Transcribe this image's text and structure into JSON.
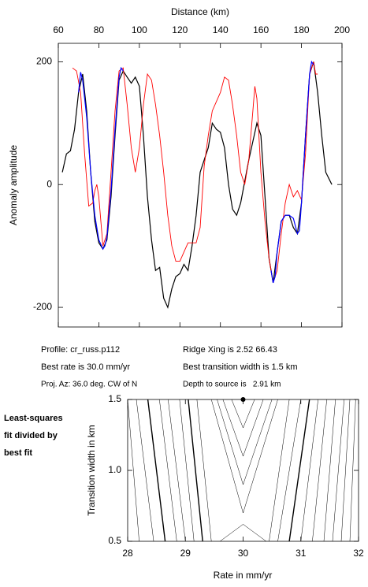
{
  "chart_data": [
    {
      "type": "line",
      "x_label": "Distance (km)",
      "y_label": "Anomaly amplitude",
      "xlim": [
        60,
        200
      ],
      "xticks": [
        60,
        80,
        100,
        120,
        140,
        160,
        180,
        200
      ],
      "ylim": [
        -232,
        230
      ],
      "yticks": [
        -200,
        0,
        200
      ],
      "series": [
        {
          "color": "#000000",
          "x": [
            62,
            64,
            66,
            68,
            70,
            72,
            74,
            76,
            78,
            80,
            82,
            84,
            86,
            88,
            90,
            92,
            94,
            96,
            98,
            100,
            102,
            104,
            106,
            108,
            110,
            112,
            114,
            116,
            118,
            120,
            122,
            124,
            126,
            128,
            130,
            132,
            134,
            136,
            138,
            140,
            142,
            144,
            146,
            148,
            150,
            154,
            158,
            160,
            162,
            164,
            166,
            168,
            170,
            172,
            174,
            176,
            178,
            180,
            182,
            184,
            186,
            188,
            190,
            192,
            195
          ],
          "values": [
            20,
            50,
            55,
            90,
            150,
            180,
            120,
            20,
            -60,
            -95,
            -105,
            -90,
            -20,
            80,
            170,
            185,
            175,
            165,
            175,
            160,
            80,
            -20,
            -90,
            -140,
            -135,
            -185,
            -200,
            -170,
            -150,
            -145,
            -130,
            -140,
            -100,
            -50,
            20,
            40,
            60,
            100,
            90,
            85,
            60,
            0,
            -40,
            -50,
            -30,
            40,
            100,
            80,
            -20,
            -120,
            -160,
            -110,
            -60,
            -50,
            -50,
            -70,
            -80,
            -30,
            80,
            180,
            200,
            150,
            80,
            20,
            0
          ]
        },
        {
          "color": "#ff0000",
          "x": [
            67,
            69,
            71,
            73,
            75,
            77,
            78,
            79,
            80,
            82,
            84,
            86,
            88,
            90,
            92,
            94,
            96,
            98,
            100,
            102,
            104,
            106,
            108,
            110,
            112,
            114,
            116,
            118,
            120,
            122,
            124,
            126,
            128,
            130,
            132,
            134,
            136,
            140,
            142,
            144,
            146,
            148,
            150,
            152,
            154,
            156,
            157,
            158,
            160,
            162,
            164,
            166,
            168,
            170,
            172,
            174,
            176,
            178,
            180,
            182,
            184,
            186,
            187,
            188
          ],
          "values": [
            190,
            185,
            150,
            50,
            -35,
            -30,
            -10,
            0,
            -20,
            -100,
            -80,
            20,
            120,
            185,
            190,
            130,
            60,
            20,
            60,
            130,
            180,
            170,
            130,
            80,
            20,
            -50,
            -100,
            -125,
            -125,
            -110,
            -95,
            -95,
            -95,
            -70,
            30,
            80,
            120,
            150,
            175,
            170,
            130,
            80,
            20,
            0,
            40,
            120,
            160,
            140,
            20,
            -60,
            -120,
            -160,
            -140,
            -80,
            -30,
            0,
            -20,
            -10,
            -25,
            50,
            180,
            200,
            180,
            180
          ]
        },
        {
          "color": "#0000ff",
          "x": [
            70,
            71,
            72,
            74,
            76,
            78,
            80,
            82,
            83,
            84,
            86,
            88,
            90,
            91,
            92
          ],
          "values": [
            150,
            183,
            170,
            110,
            20,
            -50,
            -90,
            -105,
            -100,
            -85,
            -10,
            90,
            175,
            190,
            185
          ]
        },
        {
          "color": "#0000ff",
          "x": [
            165,
            166,
            167,
            168,
            170,
            172,
            174,
            176,
            178,
            179,
            180,
            182,
            184,
            185,
            186
          ],
          "values": [
            -140,
            -160,
            -150,
            -110,
            -60,
            -50,
            -50,
            -55,
            -80,
            -75,
            -30,
            80,
            180,
            200,
            195
          ]
        }
      ]
    },
    {
      "type": "contour",
      "x_label": "Rate in mm/yr",
      "y_label": "Transition width in km",
      "xlim": [
        28,
        32
      ],
      "xticks": [
        28,
        29,
        30,
        31,
        32
      ],
      "ylim": [
        0.5,
        1.5
      ],
      "yticks": [
        0.5,
        {
          "value": 1,
          "label": "1.0"
        },
        1.5
      ],
      "point": {
        "x": 30,
        "y": 1.5
      },
      "contours": [
        {
          "x": [
            28.2,
            28.0
          ],
          "y": [
            0.5,
            1.5
          ]
        },
        {
          "x": [
            28.45,
            28.15
          ],
          "y": [
            0.5,
            1.5
          ]
        },
        {
          "x": [
            28.65,
            28.35
          ],
          "y": [
            0.5,
            1.5
          ],
          "bold": true
        },
        {
          "x": [
            28.85,
            28.55
          ],
          "y": [
            0.5,
            1.5
          ]
        },
        {
          "x": [
            29.0,
            28.7
          ],
          "y": [
            0.5,
            1.5
          ]
        },
        {
          "x": [
            29.15,
            28.9
          ],
          "y": [
            0.5,
            1.5
          ]
        },
        {
          "x": [
            29.3,
            29.05
          ],
          "y": [
            0.5,
            1.5
          ],
          "bold": true
        },
        {
          "x": [
            29.45,
            29.2
          ],
          "y": [
            0.5,
            1.5
          ]
        },
        {
          "x": [
            29.8,
            30,
            30.2
          ],
          "y": [
            1.5,
            1.3,
            1.5
          ]
        },
        {
          "x": [
            29.65,
            30,
            30.35
          ],
          "y": [
            1.5,
            1.1,
            1.5
          ]
        },
        {
          "x": [
            29.55,
            30,
            30.5
          ],
          "y": [
            1.5,
            0.9,
            1.5
          ]
        },
        {
          "x": [
            29.45,
            30,
            30.6
          ],
          "y": [
            1.5,
            0.7,
            1.5
          ]
        },
        {
          "x": [
            29.6,
            30,
            30.4
          ],
          "y": [
            0.5,
            0.62,
            0.5
          ]
        },
        {
          "x": [
            30.45,
            30.8
          ],
          "y": [
            0.5,
            1.5
          ]
        },
        {
          "x": [
            30.6,
            31.0
          ],
          "y": [
            0.5,
            1.5
          ]
        },
        {
          "x": [
            30.8,
            31.15
          ],
          "y": [
            0.5,
            1.5
          ],
          "bold": true
        },
        {
          "x": [
            31.0,
            31.3
          ],
          "y": [
            0.5,
            1.5
          ]
        },
        {
          "x": [
            31.2,
            31.45
          ],
          "y": [
            0.5,
            1.5
          ]
        },
        {
          "x": [
            31.4,
            31.6
          ],
          "y": [
            0.5,
            1.5
          ]
        },
        {
          "x": [
            31.55,
            31.75
          ],
          "y": [
            0.5,
            1.5
          ]
        },
        {
          "x": [
            31.7,
            31.85
          ],
          "y": [
            0.5,
            1.5
          ]
        },
        {
          "x": [
            31.85,
            31.95
          ],
          "y": [
            0.5,
            1.5
          ]
        }
      ]
    }
  ],
  "info": {
    "left": [
      "Profile: cr_russ.p112",
      "Best rate is 30.0 mm/yr",
      "Proj. Az: 36.0 deg. CW of N"
    ],
    "right": [
      "Ridge Xing is 2.52 66.43",
      "Best transition width is 1.5 km",
      "Depth to source is   2.91 km"
    ]
  },
  "note": [
    "Least-squares",
    "fit divided by",
    "best fit"
  ]
}
